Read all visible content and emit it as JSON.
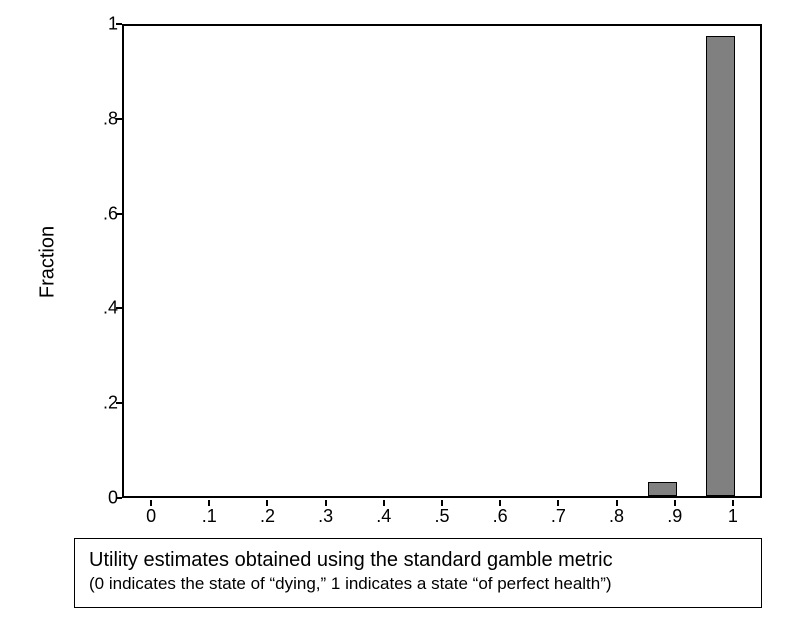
{
  "chart": {
    "type": "histogram",
    "ylabel": "Fraction",
    "ylim": [
      0,
      1
    ],
    "yticks": [
      0,
      0.2,
      0.4,
      0.6,
      0.8,
      1
    ],
    "ytick_labels": [
      "0",
      ".2",
      ".4",
      ".6",
      ".8",
      "1"
    ],
    "xlim": [
      -0.05,
      1.05
    ],
    "xticks": [
      0,
      0.1,
      0.2,
      0.3,
      0.4,
      0.5,
      0.6,
      0.7,
      0.8,
      0.9,
      1.0
    ],
    "xtick_labels": [
      "0",
      ".1",
      ".2",
      ".3",
      ".4",
      ".5",
      ".6",
      ".7",
      ".8",
      ".9",
      "1"
    ],
    "bars": [
      {
        "x_left": 0.85,
        "x_right": 0.9,
        "height": 0.03
      },
      {
        "x_left": 0.95,
        "x_right": 1.0,
        "height": 0.97
      }
    ],
    "bar_fill": "#808080",
    "bar_border": "#000000",
    "background_color": "#ffffff",
    "axis_color": "#000000",
    "tick_fontsize": 18,
    "label_fontsize": 20,
    "caption_line1": "Utility estimates obtained using the standard gamble metric",
    "caption_line2": "(0 indicates the state of “dying,” 1 indicates a state “of perfect health”)",
    "caption_line1_fontsize": 20,
    "caption_line2_fontsize": 17
  }
}
